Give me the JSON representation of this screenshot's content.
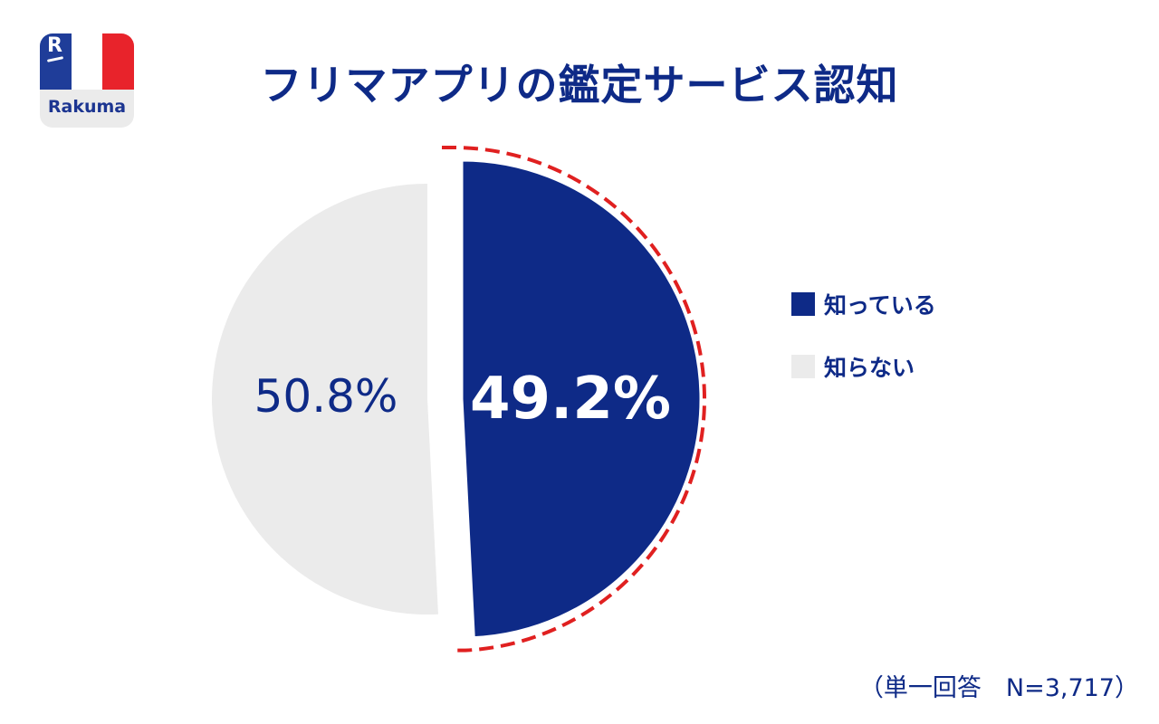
{
  "brand": {
    "name": "Rakuma",
    "mark": "R",
    "colors": {
      "blue": "#1f3d99",
      "white": "#ffffff",
      "red": "#e8232b"
    }
  },
  "footnote": "（単一回答　N=3,717）",
  "chart_data": {
    "type": "pie",
    "title": "フリマアプリの鑑定サービス認知",
    "slices": [
      {
        "label": "知っている",
        "value": 49.2,
        "display": "49.2%",
        "color": "#0e2a87",
        "highlighted": true
      },
      {
        "label": "知らない",
        "value": 50.8,
        "display": "50.8%",
        "color": "#ebebeb",
        "highlighted": false
      }
    ],
    "start": "12 o'clock, clockwise",
    "highlight_color": "#e02020",
    "legend_position": "right"
  }
}
